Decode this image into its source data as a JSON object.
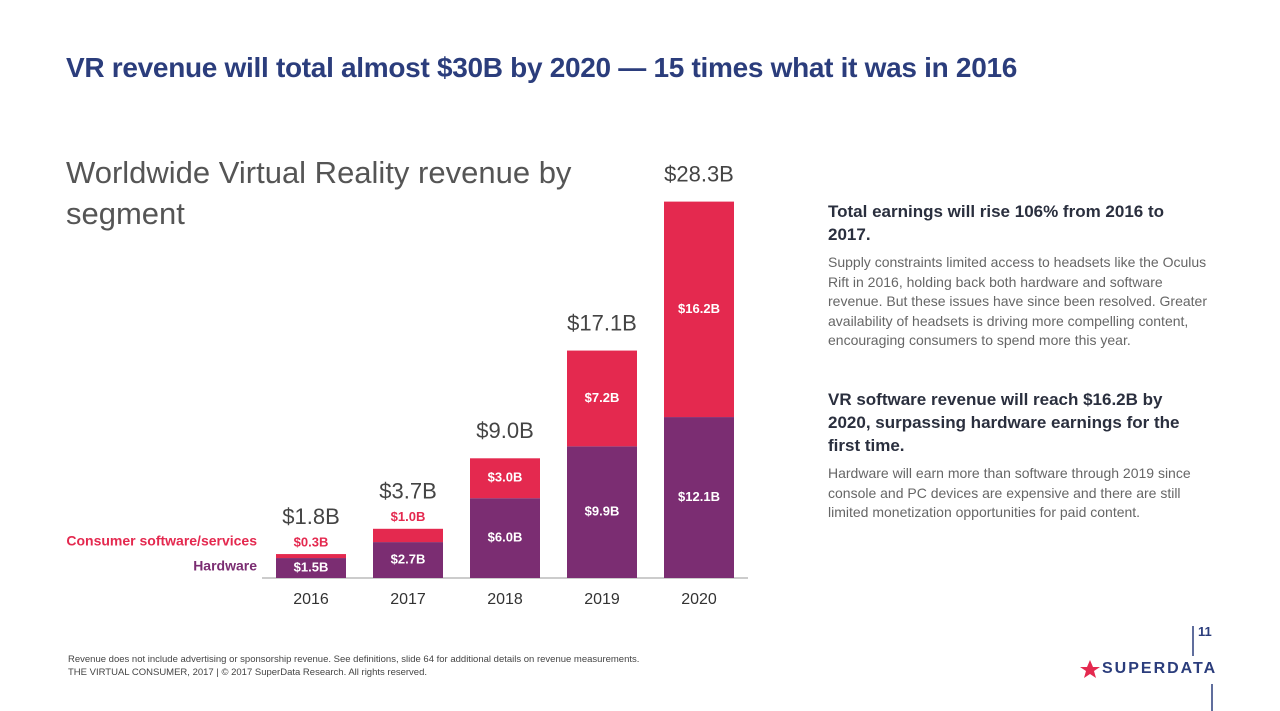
{
  "headline": "VR revenue will total almost $30B by 2020 — 15 times what it was in 2016",
  "chart_data": {
    "type": "stacked_bar",
    "title": "Worldwide Virtual Reality revenue by segment",
    "categories": [
      "2016",
      "2017",
      "2018",
      "2019",
      "2020"
    ],
    "series": [
      {
        "name": "Hardware",
        "color": "#7b2d72",
        "values": [
          1.5,
          2.7,
          6.0,
          9.9,
          12.1
        ],
        "value_labels": [
          "$1.5B",
          "$2.7B",
          "$6.0B",
          "$9.9B",
          "$12.1B"
        ]
      },
      {
        "name": "Consumer software/services",
        "color": "#e4294f",
        "values": [
          0.3,
          1.0,
          3.0,
          7.2,
          16.2
        ],
        "value_labels": [
          "$0.3B",
          "$1.0B",
          "$3.0B",
          "$7.2B",
          "$16.2B"
        ]
      }
    ],
    "totals": {
      "values": [
        1.8,
        3.7,
        9.0,
        17.1,
        28.3
      ],
      "value_labels": [
        "$1.8B",
        "$3.7B",
        "$9.0B",
        "$17.1B",
        "$28.3B"
      ]
    }
  },
  "notes": [
    {
      "heading": "Total earnings will rise 106% from 2016 to 2017.",
      "body": "Supply constraints limited access to headsets like the Oculus Rift in 2016, holding back both hardware and software revenue. But these issues have since been resolved. Greater availability of headsets is driving more compelling content, encouraging consumers to spend more this year."
    },
    {
      "heading": "VR software revenue will reach $16.2B by 2020, surpassing hardware earnings for the first time.",
      "body": "Hardware will earn more than software through 2019 since console and PC devices are expensive and there are still limited monetization opportunities for paid content."
    }
  ],
  "footer": {
    "lines": [
      "Revenue does not include advertising or sponsorship revenue. See definitions, slide 64 for additional details on revenue measurements.",
      "THE VIRTUAL CONSUMER, 2017  |  © 2017 SuperData Research. All rights reserved."
    ],
    "page": "11",
    "logo": "SUPERDATA"
  }
}
